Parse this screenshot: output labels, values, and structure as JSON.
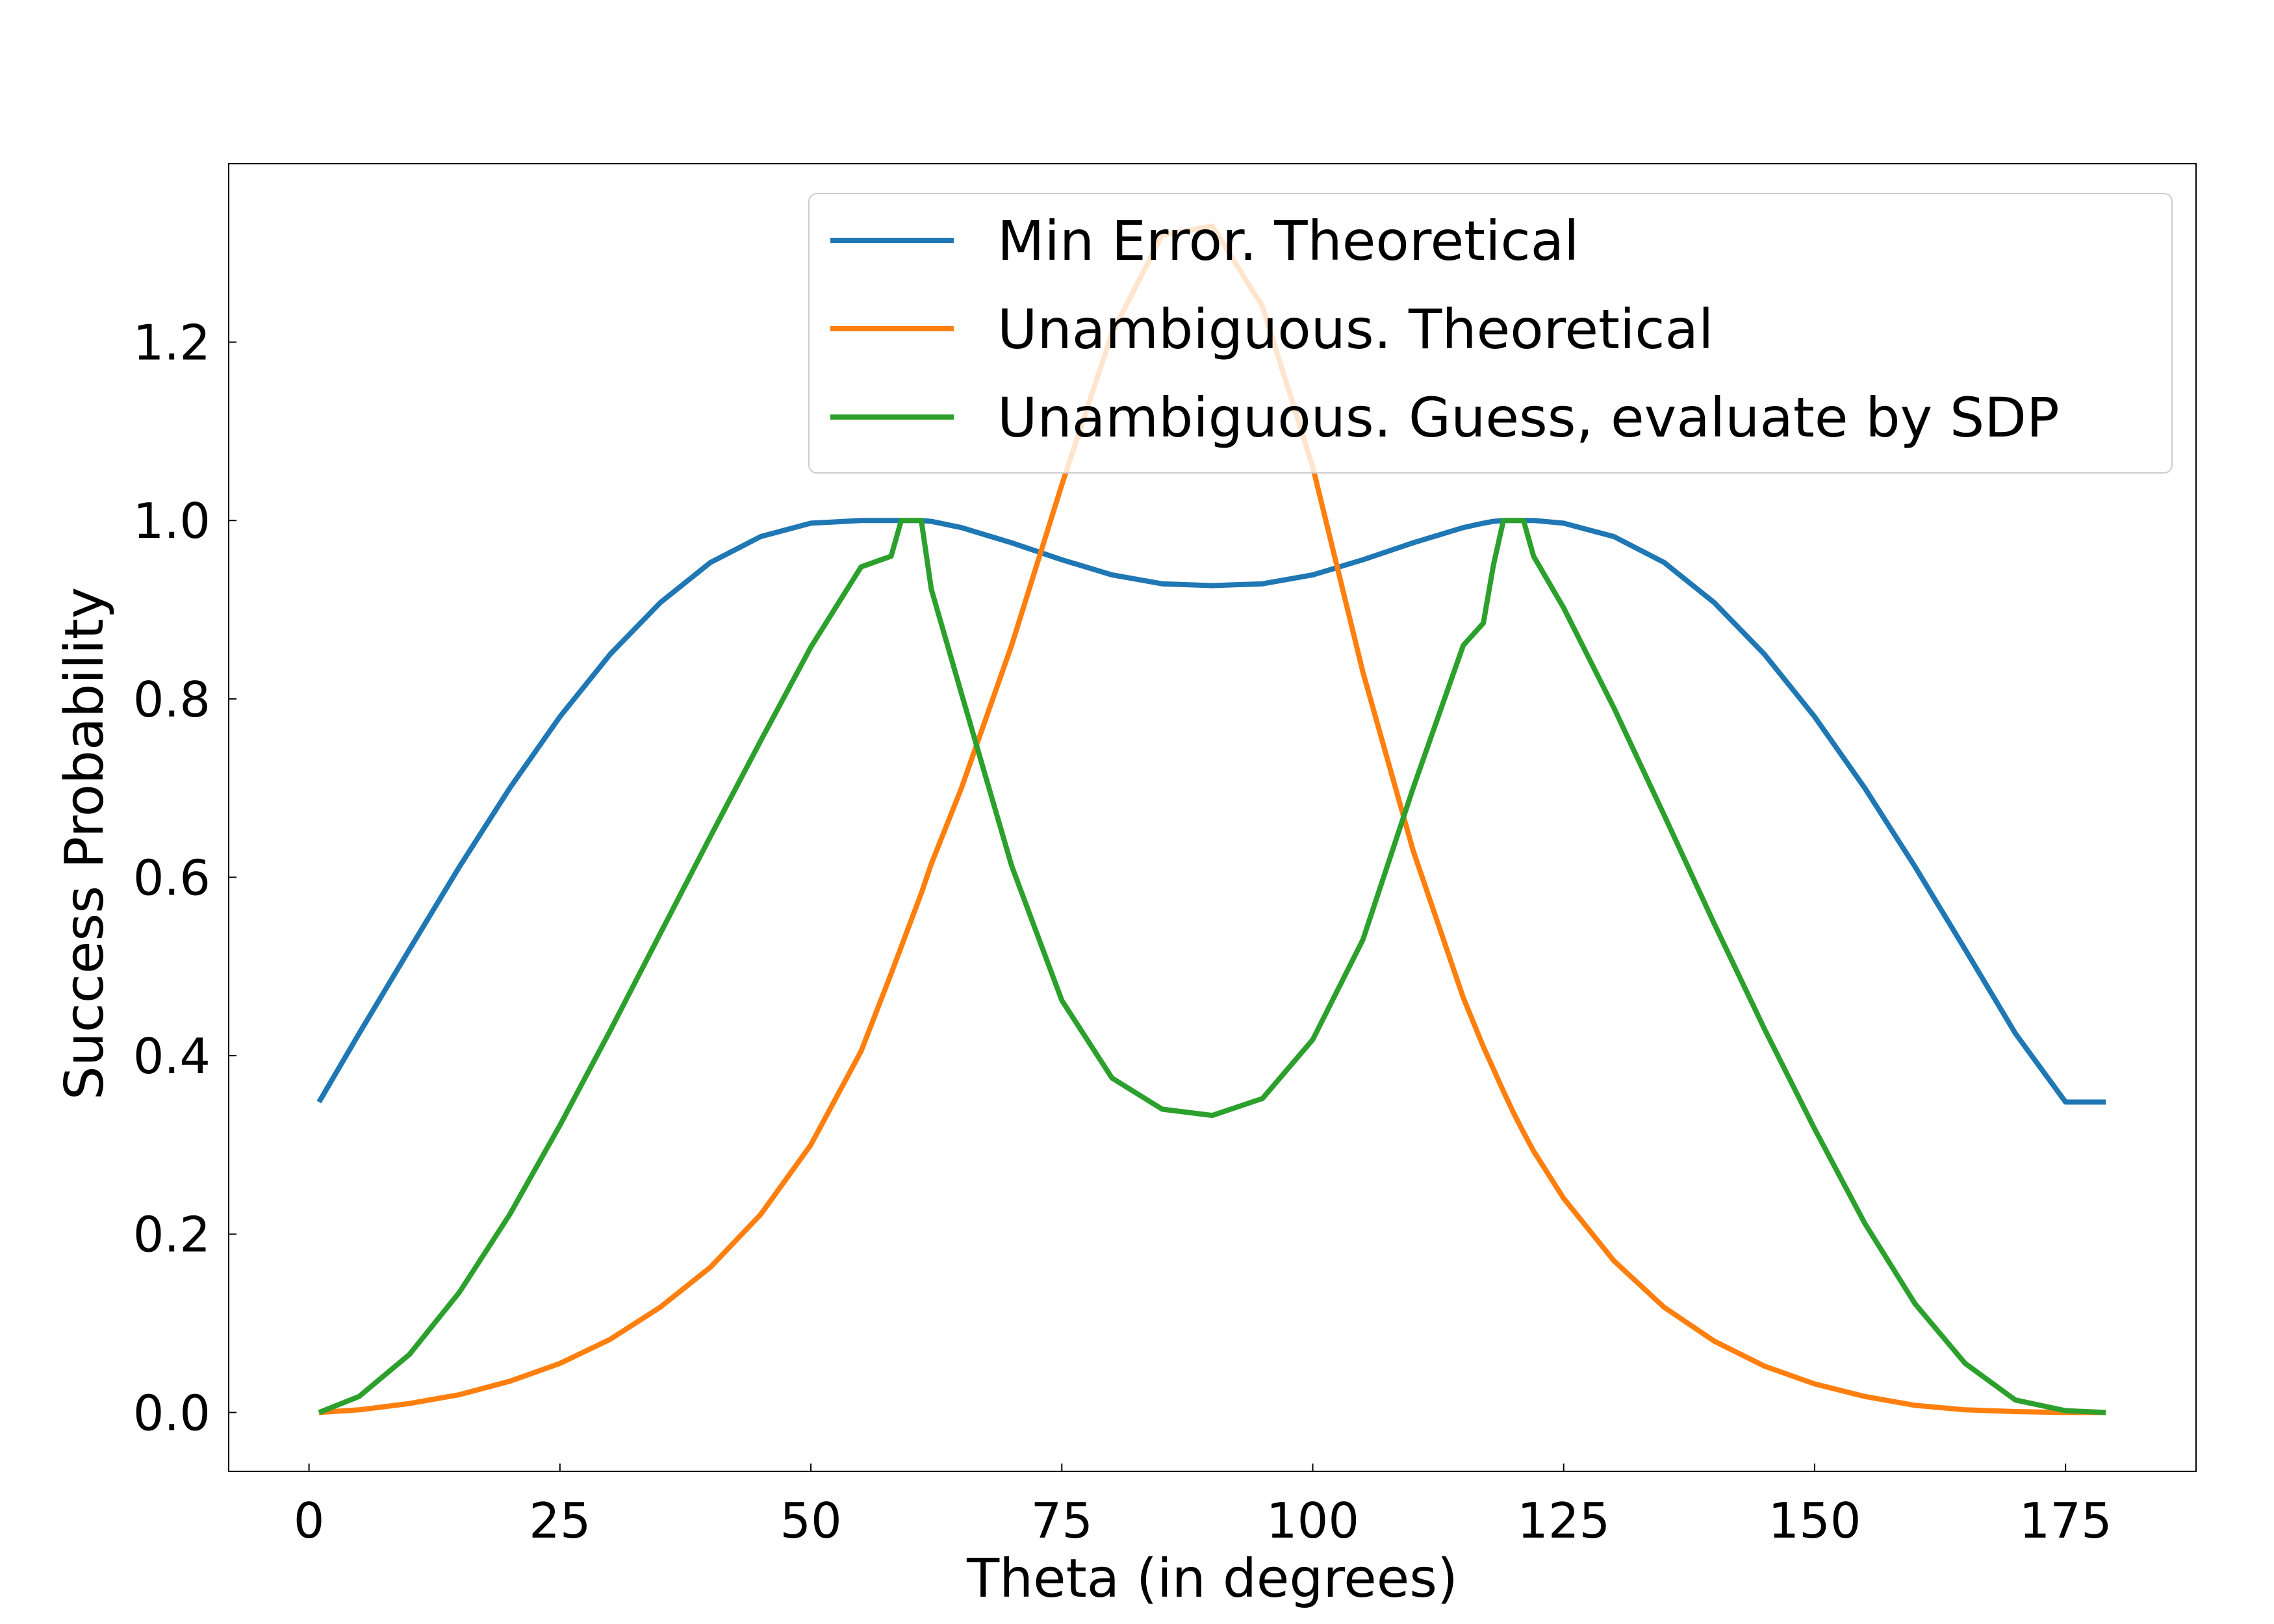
{
  "chart_data": {
    "type": "line",
    "title": "",
    "xlabel": "Theta (in degrees)",
    "ylabel": "Success Probability",
    "xlim": [
      -8,
      188
    ],
    "ylim": [
      -0.066,
      1.4
    ],
    "xticks": [
      0,
      25,
      50,
      75,
      100,
      125,
      150,
      175
    ],
    "xtick_labels": [
      "0",
      "25",
      "50",
      "75",
      "100",
      "125",
      "150",
      "175"
    ],
    "yticks": [
      0.0,
      0.2,
      0.4,
      0.6,
      0.8,
      1.0,
      1.2
    ],
    "ytick_labels": [
      "0.0",
      "0.2",
      "0.4",
      "0.6",
      "0.8",
      "1.0",
      "1.2"
    ],
    "grid": false,
    "legend_position": "top-right",
    "x": [
      1,
      5,
      10,
      15,
      20,
      25,
      30,
      35,
      40,
      45,
      50,
      55,
      58,
      59,
      60,
      61,
      62,
      65,
      70,
      75,
      80,
      85,
      90,
      95,
      100,
      105,
      110,
      115,
      117,
      118,
      119,
      120,
      121,
      122,
      125,
      130,
      135,
      140,
      145,
      150,
      155,
      160,
      165,
      170,
      175,
      179
    ],
    "series": [
      {
        "name": "Min Error. Theoretical",
        "color": "#1f77b4",
        "values": [
          0.348,
          0.425,
          0.519,
          0.612,
          0.7,
          0.78,
          0.85,
          0.908,
          0.953,
          0.982,
          0.997,
          1.0,
          1.0,
          1.0,
          1.0,
          1.0,
          0.999,
          0.992,
          0.975,
          0.956,
          0.939,
          0.929,
          0.927,
          0.929,
          0.939,
          0.956,
          0.975,
          0.992,
          0.997,
          0.999,
          1.0,
          1.0,
          1.0,
          1.0,
          0.997,
          0.982,
          0.953,
          0.908,
          0.85,
          0.78,
          0.7,
          0.612,
          0.519,
          0.425,
          0.348,
          0.348
        ]
      },
      {
        "name": "Unambiguous. Theoretical",
        "color": "#ff7f0e",
        "values": [
          0.0,
          0.003,
          0.01,
          0.02,
          0.035,
          0.055,
          0.082,
          0.118,
          0.163,
          0.222,
          0.3,
          0.405,
          0.492,
          0.522,
          0.552,
          0.582,
          0.615,
          0.7,
          0.86,
          1.04,
          1.21,
          1.32,
          1.33,
          1.24,
          1.06,
          0.83,
          0.63,
          0.465,
          0.41,
          0.385,
          0.36,
          0.336,
          0.314,
          0.293,
          0.24,
          0.17,
          0.118,
          0.08,
          0.052,
          0.032,
          0.018,
          0.008,
          0.003,
          0.001,
          0.0,
          0.0
        ]
      },
      {
        "name": "Unambiguous. Guess, evaluate by SDP",
        "color": "#2ca02c",
        "values": [
          0.0,
          0.018,
          0.065,
          0.135,
          0.222,
          0.322,
          0.428,
          0.537,
          0.646,
          0.753,
          0.858,
          0.948,
          0.96,
          1.0,
          1.0,
          1.0,
          0.923,
          0.806,
          0.613,
          0.462,
          0.375,
          0.34,
          0.333,
          0.352,
          0.418,
          0.53,
          0.7,
          0.86,
          0.885,
          0.95,
          1.0,
          1.0,
          1.0,
          0.96,
          0.902,
          0.79,
          0.67,
          0.548,
          0.43,
          0.318,
          0.212,
          0.122,
          0.055,
          0.014,
          0.002,
          0.0
        ]
      }
    ]
  }
}
